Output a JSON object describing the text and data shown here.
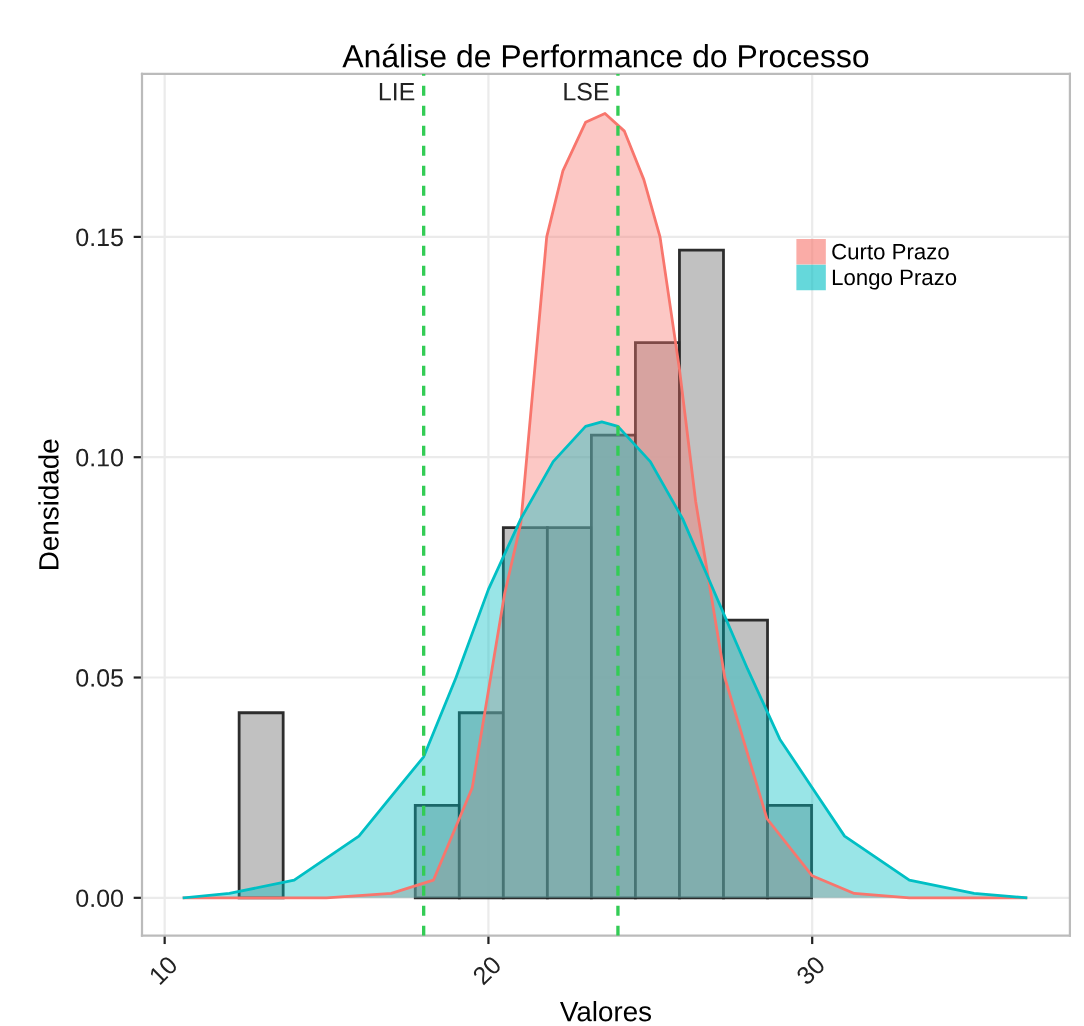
{
  "chart_data": {
    "type": "histogram",
    "title": "Análise de Performance do Processo",
    "xlabel": "Valores",
    "ylabel": "Densidade",
    "bins": [
      12.3,
      13.66,
      15.02,
      16.38,
      17.74,
      19.1,
      20.46,
      21.82,
      23.18,
      24.54,
      25.9,
      27.26,
      28.62,
      29.98
    ],
    "values": [
      0.042,
      0,
      0,
      0,
      0.021,
      0.042,
      0.084,
      0.084,
      0.105,
      0.126,
      0.147,
      0.063,
      0.021
    ],
    "color": "#bebebe",
    "series": [
      {
        "type": "area",
        "name": "Curto Prazo",
        "color": "#f8766d",
        "x": [
          10.6,
          15,
          17,
          18.3,
          19.5,
          20.5,
          21,
          21.8,
          22.3,
          23,
          23.6,
          24.2,
          24.8,
          25.3,
          25.9,
          26.4,
          27.3,
          28.6,
          30,
          31.3,
          33,
          36.6
        ],
        "values": [
          0,
          0,
          0.001,
          0.004,
          0.025,
          0.069,
          0.085,
          0.15,
          0.165,
          0.176,
          0.178,
          0.174,
          0.163,
          0.15,
          0.12,
          0.09,
          0.05,
          0.018,
          0.005,
          0.001,
          0,
          0
        ]
      },
      {
        "type": "area",
        "name": "Longo Prazo",
        "color": "#00bfc4",
        "x": [
          10.6,
          12,
          14,
          16,
          17,
          18,
          19,
          20,
          21,
          22,
          23,
          23.5,
          24,
          25,
          26,
          27,
          28,
          29,
          30,
          31,
          33,
          35,
          36.6
        ],
        "values": [
          0,
          0.001,
          0.004,
          0.014,
          0.023,
          0.032,
          0.05,
          0.07,
          0.086,
          0.099,
          0.107,
          0.108,
          0.107,
          0.099,
          0.086,
          0.069,
          0.052,
          0.036,
          0.025,
          0.014,
          0.004,
          0.001,
          0
        ]
      }
    ],
    "ref_lines": [
      {
        "axis": "x",
        "value": 18,
        "label": "LIE",
        "color": "#33cc55",
        "line_style": "dashed"
      },
      {
        "axis": "x",
        "value": 24,
        "label": "LSE",
        "color": "#33cc55",
        "line_style": "dashed"
      }
    ],
    "xlim": [
      9.3,
      37.96
    ],
    "ylim": [
      -0.0086,
      0.187
    ],
    "xticks": [
      10,
      20,
      30
    ],
    "yticks": [
      {
        "value": 0,
        "label": "0.00"
      },
      {
        "value": 0.05,
        "label": "0.05"
      },
      {
        "value": 0.1,
        "label": "0.10"
      },
      {
        "value": 0.15,
        "label": "0.15"
      }
    ],
    "grid": true,
    "legend": "top right"
  }
}
